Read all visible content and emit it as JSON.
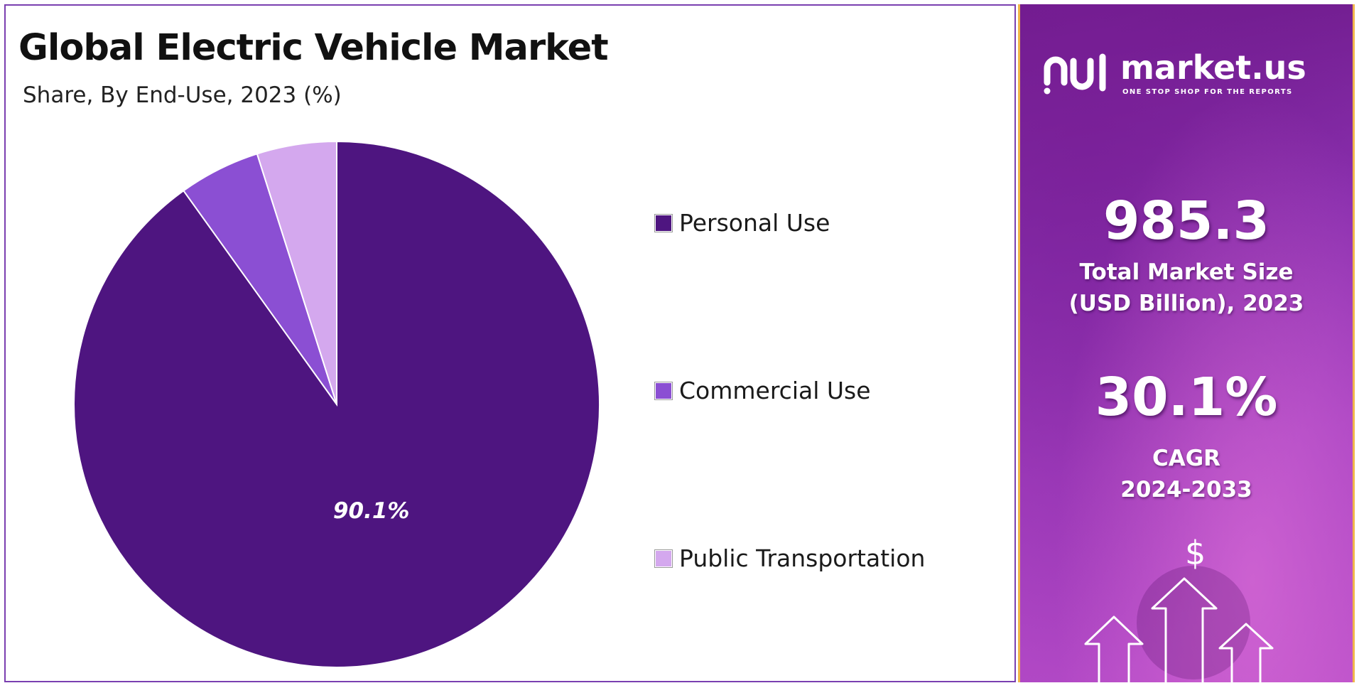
{
  "chart": {
    "title": "Global Electric Vehicle Market",
    "subtitle": "Share, By End-Use, 2023 (%)"
  },
  "chart_data": {
    "type": "pie",
    "title": "Global Electric Vehicle Market",
    "subtitle": "Share, By End-Use, 2023 (%)",
    "categories": [
      "Personal Use",
      "Commercial Use",
      "Public Transportation"
    ],
    "values": [
      90.1,
      5.0,
      4.9
    ],
    "data_labels": [
      "90.1%",
      "",
      ""
    ],
    "colors": [
      "#4e1580",
      "#8b4fd3",
      "#d4a8ee"
    ],
    "legend_placement": "right"
  },
  "brand": {
    "name": "market.us",
    "tagline": "ONE STOP SHOP FOR THE REPORTS"
  },
  "stats": {
    "market_size_value": "985.3",
    "market_size_label_line1": "Total Market Size",
    "market_size_label_line2": "(USD Billion), 2023",
    "cagr_value": "30.1%",
    "cagr_label_line1": "CAGR",
    "cagr_label_line2": "2024-2033"
  },
  "decor": {
    "dollar_symbol": "$",
    "icon": "rising-arrows-icon"
  }
}
